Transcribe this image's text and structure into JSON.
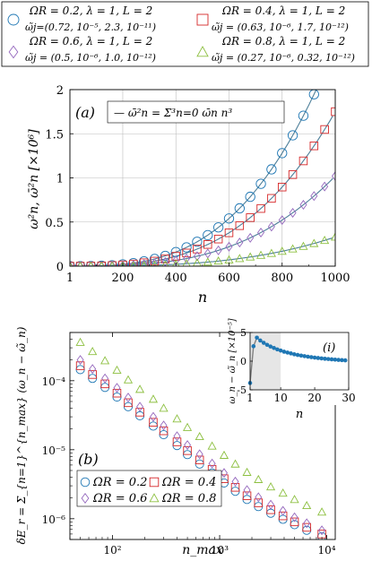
{
  "legend": {
    "entries": [
      {
        "line1": "ΩR = 0.2, λ = 1, L = 2",
        "line2": "ω̃j=(0.72, 10⁻⁵, 2.3, 10⁻¹¹)",
        "color": "#1f77b4",
        "marker": "circle"
      },
      {
        "line1": "ΩR = 0.4, λ = 1, L = 2",
        "line2": "ω̃j = (0.63, 10⁻⁶, 1.7, 10⁻¹²)",
        "color": "#d62728",
        "marker": "square"
      },
      {
        "line1": "ΩR = 0.6, λ = 1, L = 2",
        "line2": "ω̃j = (0.5, 10⁻⁶, 1.0, 10⁻¹²)",
        "color": "#9467bd",
        "marker": "diamond"
      },
      {
        "line1": "ΩR = 0.8, λ = 1, L = 2",
        "line2": "ω̃j = (0.27, 10⁻⁶, 0.32, 10⁻¹²)",
        "color": "#8cbf3f",
        "marker": "triangle"
      }
    ]
  },
  "chart_data": [
    {
      "type": "line",
      "panel_label": "(a)",
      "inner_legend": "— ω̄²n = Σ³n=0 ω̄n n³",
      "xlabel": "n",
      "ylabel": "ω²n, ω̄²n [×10⁶]",
      "xlim": [
        1,
        1000
      ],
      "ylim": [
        0,
        2
      ],
      "xticks": [
        1,
        200,
        400,
        600,
        800,
        1000
      ],
      "yticks": [
        0,
        0.5,
        1,
        1.5,
        2
      ],
      "grid": true,
      "fit_line_color": "#4d7f99",
      "series": [
        {
          "name": "ΩR = 0.2",
          "marker": "circle",
          "color": "#1f77b4",
          "coef": 2.5,
          "x": [
            1,
            40,
            80,
            120,
            160,
            200,
            240,
            280,
            320,
            360,
            400,
            440,
            480,
            520,
            560,
            600,
            640,
            680,
            720,
            760,
            800,
            840,
            880,
            920
          ],
          "y": [
            0,
            0.0002,
            0.0013,
            0.0043,
            0.0102,
            0.02,
            0.0346,
            0.0549,
            0.0819,
            0.1166,
            0.16,
            0.213,
            0.2765,
            0.3515,
            0.439,
            0.54,
            0.6554,
            0.786,
            0.933,
            1.097,
            1.28,
            1.482,
            1.704,
            1.947
          ]
        },
        {
          "name": "ΩR = 0.4",
          "marker": "square",
          "color": "#d62728",
          "coef": 1.75,
          "x": [
            1,
            40,
            80,
            120,
            160,
            200,
            240,
            280,
            320,
            360,
            400,
            440,
            480,
            520,
            560,
            600,
            640,
            680,
            720,
            760,
            800,
            840,
            880,
            920,
            960,
            1000
          ],
          "y": [
            0,
            0.0001,
            0.0009,
            0.003,
            0.0072,
            0.014,
            0.0242,
            0.0384,
            0.0573,
            0.0816,
            0.112,
            0.1491,
            0.1935,
            0.2461,
            0.3073,
            0.378,
            0.4588,
            0.5502,
            0.6532,
            0.7682,
            0.896,
            1.0372,
            1.1926,
            1.3627,
            1.5483,
            1.75
          ]
        },
        {
          "name": "ΩR = 0.6",
          "marker": "diamond",
          "color": "#9467bd",
          "coef": 1.02,
          "x": [
            1,
            40,
            80,
            120,
            160,
            200,
            240,
            280,
            320,
            360,
            400,
            440,
            480,
            520,
            560,
            600,
            640,
            680,
            720,
            760,
            800,
            840,
            880,
            920,
            960,
            1000
          ],
          "y": [
            0,
            0.0001,
            0.0005,
            0.0018,
            0.0042,
            0.0082,
            0.0141,
            0.0224,
            0.0334,
            0.0476,
            0.0653,
            0.0869,
            0.1128,
            0.1434,
            0.1791,
            0.2203,
            0.2674,
            0.3207,
            0.3807,
            0.4477,
            0.5222,
            0.6045,
            0.6951,
            0.7943,
            0.9024,
            1.02
          ]
        },
        {
          "name": "ΩR = 0.8",
          "marker": "triangle",
          "color": "#8cbf3f",
          "coef": 0.33,
          "x": [
            1,
            40,
            80,
            120,
            160,
            200,
            240,
            280,
            320,
            360,
            400,
            440,
            480,
            520,
            560,
            600,
            640,
            680,
            720,
            760,
            800,
            840,
            880,
            920,
            960,
            1000
          ],
          "y": [
            0,
            0,
            0.0002,
            0.0006,
            0.0014,
            0.0026,
            0.0046,
            0.0072,
            0.0108,
            0.0154,
            0.0211,
            0.0281,
            0.0365,
            0.0464,
            0.058,
            0.0713,
            0.0865,
            0.1038,
            0.1232,
            0.1448,
            0.169,
            0.1956,
            0.2249,
            0.257,
            0.2919,
            0.33
          ]
        }
      ]
    },
    {
      "type": "scatter",
      "panel_label": "(b)",
      "xlabel": "n_max",
      "ylabel": "δE_r = Σ_{n=1}^{n_max} (ω_n − ω̃_n)",
      "xscale": "log",
      "yscale": "log",
      "xlim": [
        40,
        12000
      ],
      "ylim": [
        5e-07,
        0.0005
      ],
      "xtick_labels": [
        "10²",
        "10³",
        "10⁴"
      ],
      "ytick_labels": [
        "10⁻⁴",
        "10⁻⁵",
        "10⁻⁶"
      ],
      "legend_position": "bottom-left",
      "series": [
        {
          "name": "ΩR = 0.2",
          "marker": "circle",
          "color": "#1f77b4",
          "x": [
            50,
            65,
            85,
            110,
            140,
            180,
            240,
            300,
            400,
            500,
            650,
            850,
            1100,
            1400,
            1800,
            2300,
            3000,
            3900,
            5000,
            6500,
            9000
          ],
          "y": [
            0.000145,
            0.000108,
            8e-05,
            5.8e-05,
            4.2e-05,
            3.1e-05,
            2.2e-05,
            1.65e-05,
            1.15e-05,
            8.5e-06,
            6.2e-06,
            4.6e-06,
            3.3e-06,
            2.5e-06,
            1.9e-06,
            1.5e-06,
            1.2e-06,
            9.8e-07,
            8.2e-07,
            6.8e-07,
            5.5e-07
          ]
        },
        {
          "name": "ΩR = 0.4",
          "marker": "square",
          "color": "#d62728",
          "x": [
            50,
            65,
            85,
            110,
            140,
            180,
            240,
            300,
            400,
            500,
            650,
            850,
            1100,
            1400,
            1800,
            2300,
            3000,
            3900,
            5000,
            6500,
            9000
          ],
          "y": [
            0.000165,
            0.000123,
            9e-05,
            6.6e-05,
            4.8e-05,
            3.5e-05,
            2.5e-05,
            1.88e-05,
            1.3e-05,
            9.7e-06,
            7.1e-06,
            5.2e-06,
            3.8e-06,
            2.85e-06,
            2.15e-06,
            1.7e-06,
            1.35e-06,
            1.1e-06,
            9e-07,
            7.5e-07,
            6e-07
          ]
        },
        {
          "name": "ΩR = 0.6",
          "marker": "diamond",
          "color": "#9467bd",
          "x": [
            50,
            65,
            85,
            110,
            140,
            180,
            240,
            300,
            400,
            500,
            650,
            850,
            1100,
            1400,
            1800,
            2300,
            3000,
            3900,
            5000,
            6500,
            9000
          ],
          "y": [
            0.0002,
            0.000148,
            0.000108,
            7.9e-05,
            5.7e-05,
            4.2e-05,
            3e-05,
            2.25e-05,
            1.57e-05,
            1.17e-05,
            8.6e-06,
            6.3e-06,
            4.6e-06,
            3.45e-06,
            2.6e-06,
            2.05e-06,
            1.6e-06,
            1.3e-06,
            1.05e-06,
            8.6e-07,
            6.8e-07
          ]
        },
        {
          "name": "ΩR = 0.8",
          "marker": "triangle",
          "color": "#8cbf3f",
          "x": [
            50,
            65,
            85,
            110,
            140,
            180,
            240,
            300,
            400,
            500,
            650,
            850,
            1100,
            1400,
            1800,
            2300,
            3000,
            3900,
            5000,
            6500,
            9000
          ],
          "y": [
            0.00036,
            0.000265,
            0.000195,
            0.000142,
            0.000103,
            7.5e-05,
            5.4e-05,
            4e-05,
            2.8e-05,
            2.1e-05,
            1.55e-05,
            1.13e-05,
            8.3e-06,
            6.2e-06,
            4.7e-06,
            3.7e-06,
            2.9e-06,
            2.35e-06,
            1.9e-06,
            1.55e-06,
            1.25e-06
          ]
        }
      ]
    },
    {
      "type": "line",
      "panel_label": "(i)",
      "xlabel": "n",
      "ylabel": "ω_n − ω̃_n [×10⁻⁵]",
      "xlim": [
        1,
        30
      ],
      "ylim": [
        -5,
        5
      ],
      "xticks": [
        1,
        10,
        20,
        30
      ],
      "yticks": [
        -5,
        0,
        5
      ],
      "shaded_region": [
        1,
        10
      ],
      "color": "#1f77b4",
      "x": [
        1,
        2,
        3,
        4,
        5,
        6,
        7,
        8,
        9,
        10,
        11,
        12,
        13,
        14,
        15,
        16,
        17,
        18,
        19,
        20,
        21,
        22,
        23,
        24,
        25,
        26,
        27,
        28,
        29
      ],
      "y": [
        -3.8,
        2.6,
        4.1,
        3.6,
        3.2,
        2.85,
        2.55,
        2.3,
        2.05,
        1.85,
        1.65,
        1.5,
        1.35,
        1.2,
        1.08,
        0.97,
        0.87,
        0.78,
        0.7,
        0.62,
        0.55,
        0.48,
        0.42,
        0.37,
        0.32,
        0.27,
        0.22,
        0.18,
        0.14
      ]
    }
  ]
}
